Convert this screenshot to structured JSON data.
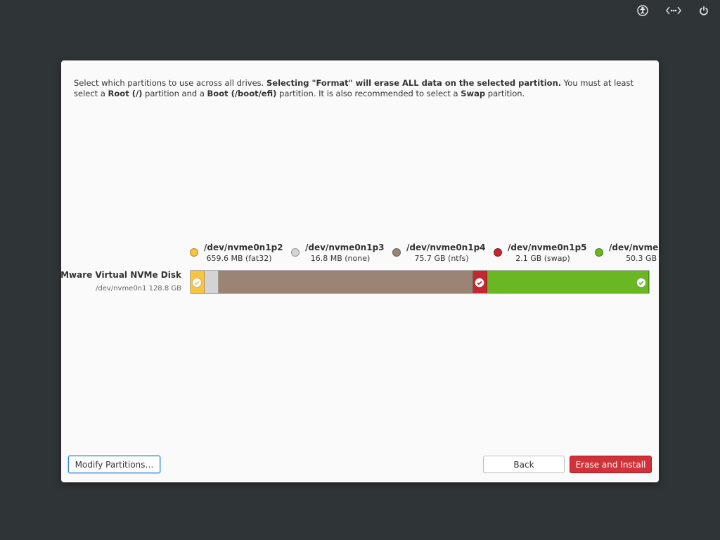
{
  "intro": [
    {
      "text": "Select which partitions to use across all drives. ",
      "bold": false
    },
    {
      "text": "Selecting \"Format\" will erase ALL data on the selected partition.",
      "bold": true
    },
    {
      "text": " You must at least select a ",
      "bold": false
    },
    {
      "text": "Root (/)",
      "bold": true
    },
    {
      "text": " partition and a ",
      "bold": false
    },
    {
      "text": "Boot (/boot/efi)",
      "bold": true
    },
    {
      "text": " partition. It is also recommended to select a ",
      "bold": false
    },
    {
      "text": "Swap",
      "bold": true
    },
    {
      "text": " partition.",
      "bold": false
    }
  ],
  "disk": {
    "name": "VMware Virtual NVMe Disk",
    "detail": "/dev/nvme0n1 128.8 GB"
  },
  "partitions": [
    {
      "name": "/dev/nvme0n1p2",
      "size": "659.6 MB (fat32)",
      "color": "#f9c440",
      "selected": true
    },
    {
      "name": "/dev/nvme0n1p3",
      "size": "16.8 MB (none)",
      "color": "#d4d4d4",
      "selected": false
    },
    {
      "name": "/dev/nvme0n1p4",
      "size": "75.7 GB (ntfs)",
      "color": "#9b8474",
      "selected": false
    },
    {
      "name": "/dev/nvme0n1p5",
      "size": "2.1 GB (swap)",
      "color": "#c6262e",
      "selected": true
    },
    {
      "name": "/dev/nvme",
      "size": "50.3 GB (",
      "color": "#68b723",
      "selected": true
    }
  ],
  "buttons": {
    "modify": "Modify Partitions…",
    "back": "Back",
    "install": "Erase and Install"
  }
}
